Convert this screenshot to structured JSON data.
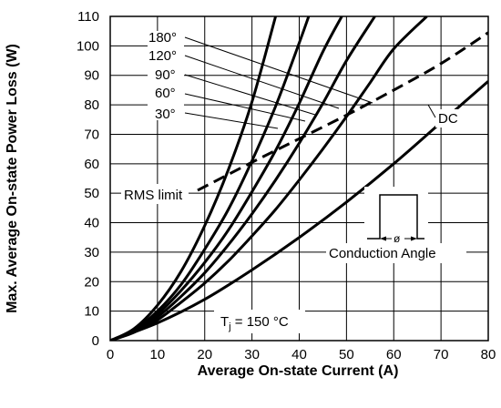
{
  "chart_data": {
    "type": "line",
    "xlabel": "Average On-state Current (A)",
    "ylabel": "Max. Average On-state Power Loss (W)",
    "xlim": [
      0,
      80
    ],
    "ylim": [
      0,
      110
    ],
    "xticks": [
      0,
      10,
      20,
      30,
      40,
      50,
      60,
      70,
      80
    ],
    "yticks": [
      0,
      10,
      20,
      30,
      40,
      50,
      60,
      70,
      80,
      90,
      100,
      110
    ],
    "grid": true,
    "series": [
      {
        "name": "30°",
        "x": [
          0,
          5,
          10,
          15,
          20,
          25,
          30,
          35
        ],
        "y": [
          0,
          4,
          12,
          23.5,
          39,
          58,
          81,
          110
        ]
      },
      {
        "name": "60°",
        "x": [
          0,
          5,
          10,
          15,
          20,
          25,
          30,
          35,
          40,
          42
        ],
        "y": [
          0,
          3.5,
          10,
          19,
          31,
          44.5,
          61,
          79.5,
          101,
          110
        ]
      },
      {
        "name": "90°",
        "x": [
          0,
          5,
          10,
          15,
          20,
          25,
          30,
          35,
          40,
          45,
          49
        ],
        "y": [
          0,
          3.2,
          9,
          17,
          26.5,
          37.5,
          50.5,
          64.5,
          80.5,
          98,
          110
        ]
      },
      {
        "name": "120°",
        "x": [
          0,
          5,
          10,
          15,
          20,
          25,
          30,
          35,
          40,
          45,
          50,
          56
        ],
        "y": [
          0,
          3,
          8,
          15,
          23,
          32.5,
          43,
          54.5,
          67,
          80.5,
          95,
          110
        ]
      },
      {
        "name": "180°",
        "x": [
          0,
          5,
          10,
          15,
          20,
          25,
          30,
          35,
          40,
          45,
          50,
          55,
          60,
          67
        ],
        "y": [
          0,
          2.8,
          7,
          13,
          19.5,
          27,
          35.5,
          44.5,
          54.5,
          65,
          76,
          87.5,
          99,
          110
        ]
      },
      {
        "name": "DC",
        "x": [
          0,
          10,
          20,
          30,
          40,
          50,
          60,
          70,
          80
        ],
        "y": [
          0,
          6,
          14,
          24,
          35,
          47,
          60,
          74,
          88
        ]
      },
      {
        "name": "RMS limit",
        "style": "dashed",
        "x": [
          18.5,
          30,
          40,
          50,
          60,
          70,
          80
        ],
        "y": [
          51,
          60.5,
          68.5,
          76.5,
          85,
          94,
          104.5
        ]
      }
    ],
    "curve_labels": [
      "180°",
      "120°",
      "90°",
      "60°",
      "30°"
    ],
    "annotations": {
      "rms_limit": "RMS limit",
      "dc": "DC",
      "conduction_angle": "Conduction Angle",
      "phi": "ø",
      "tj_main": "T",
      "tj_sub": "j",
      "tj_value": " = 150 °C"
    }
  }
}
